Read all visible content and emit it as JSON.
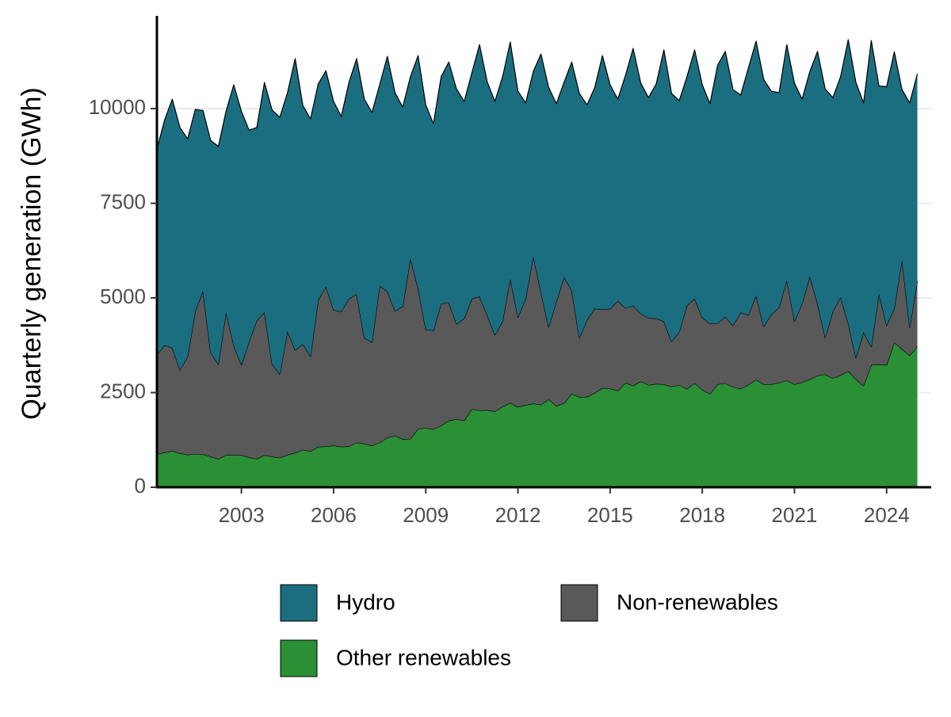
{
  "chart_data": {
    "type": "stacked_area",
    "y_label": "Quarterly generation (GWh)",
    "x": [
      2000.25,
      2000.5,
      2000.75,
      2001,
      2001.25,
      2001.5,
      2001.75,
      2002,
      2002.25,
      2002.5,
      2002.75,
      2003,
      2003.25,
      2003.5,
      2003.75,
      2004,
      2004.25,
      2004.5,
      2004.75,
      2005,
      2005.25,
      2005.5,
      2005.75,
      2006,
      2006.25,
      2006.5,
      2006.75,
      2007,
      2007.25,
      2007.5,
      2007.75,
      2008,
      2008.25,
      2008.5,
      2008.75,
      2009,
      2009.25,
      2009.5,
      2009.75,
      2010,
      2010.25,
      2010.5,
      2010.75,
      2011,
      2011.25,
      2011.5,
      2011.75,
      2012,
      2012.25,
      2012.5,
      2012.75,
      2013,
      2013.25,
      2013.5,
      2013.75,
      2014,
      2014.25,
      2014.5,
      2014.75,
      2015,
      2015.25,
      2015.5,
      2015.75,
      2016,
      2016.25,
      2016.5,
      2016.75,
      2017,
      2017.25,
      2017.5,
      2017.75,
      2018,
      2018.25,
      2018.5,
      2018.75,
      2019,
      2019.25,
      2019.5,
      2019.75,
      2020,
      2020.25,
      2020.5,
      2020.75,
      2021,
      2021.25,
      2021.5,
      2021.75,
      2022,
      2022.25,
      2022.5,
      2022.75,
      2023,
      2023.25,
      2023.5,
      2023.75,
      2024,
      2024.25,
      2024.5,
      2024.75,
      2025
    ],
    "series": [
      {
        "name": "Hydro",
        "color": "#1b6e80",
        "values": [
          5430,
          5950,
          6570,
          6400,
          5750,
          5330,
          4770,
          5610,
          5750,
          5310,
          6880,
          6700,
          5580,
          5100,
          6070,
          6710,
          6790,
          6300,
          7700,
          6300,
          6270,
          5700,
          5700,
          5510,
          5150,
          5710,
          6220,
          6300,
          6070,
          5310,
          6210,
          5770,
          5260,
          4790,
          6150,
          5930,
          5460,
          5990,
          6350,
          6210,
          5730,
          5960,
          6650,
          6170,
          6170,
          6460,
          6250,
          5970,
          5170,
          4880,
          6290,
          6330,
          5230,
          5140,
          6030,
          6460,
          5680,
          5840,
          6700,
          5920,
          5330,
          6150,
          6800,
          6090,
          5820,
          6190,
          7170,
          6550,
          6110,
          6040,
          6570,
          6150,
          5810,
          6810,
          7010,
          6230,
          5740,
          6520,
          6720,
          6520,
          5890,
          5670,
          6220,
          6290,
          5390,
          5410,
          6660,
          6570,
          5640,
          5820,
          7490,
          7270,
          6050,
          8090,
          5490,
          6310,
          6770,
          4490,
          5930,
          5470
        ]
      },
      {
        "name": "Non-renewables",
        "color": "#595959",
        "values": [
          2630,
          2830,
          2720,
          2200,
          2590,
          3770,
          4310,
          2740,
          2500,
          3770,
          2890,
          2380,
          3060,
          3650,
          3770,
          2440,
          2200,
          3260,
          2710,
          2790,
          2510,
          3880,
          4220,
          3580,
          3570,
          3900,
          3920,
          2800,
          2730,
          4140,
          3860,
          3290,
          3510,
          4770,
          3710,
          2600,
          2610,
          3220,
          3120,
          2510,
          2700,
          2910,
          3010,
          2500,
          2020,
          2250,
          3280,
          2370,
          2810,
          3890,
          2970,
          1910,
          2750,
          3330,
          2730,
          1560,
          2030,
          2230,
          2080,
          2100,
          2370,
          1970,
          2110,
          1780,
          1770,
          1730,
          1660,
          1190,
          1400,
          2200,
          2230,
          1900,
          1850,
          1620,
          1750,
          1620,
          2020,
          1840,
          2220,
          1530,
          1850,
          1990,
          2650,
          1660,
          2090,
          2720,
          1900,
          970,
          1770,
          2060,
          1260,
          570,
          1420,
          480,
          1870,
          1040,
          900,
          2360,
          740,
          1730
        ]
      },
      {
        "name": "Other renewables",
        "color": "#2b8f36",
        "values": [
          870,
          920,
          960,
          900,
          860,
          880,
          870,
          810,
          750,
          850,
          860,
          850,
          790,
          750,
          850,
          810,
          780,
          860,
          910,
          990,
          950,
          1070,
          1080,
          1100,
          1070,
          1080,
          1180,
          1150,
          1100,
          1180,
          1310,
          1360,
          1270,
          1280,
          1540,
          1570,
          1530,
          1630,
          1760,
          1800,
          1760,
          2070,
          2030,
          2040,
          2000,
          2130,
          2230,
          2120,
          2170,
          2210,
          2180,
          2320,
          2150,
          2220,
          2470,
          2380,
          2390,
          2490,
          2620,
          2610,
          2550,
          2760,
          2680,
          2800,
          2700,
          2730,
          2720,
          2660,
          2700,
          2600,
          2750,
          2580,
          2470,
          2720,
          2750,
          2650,
          2600,
          2710,
          2840,
          2720,
          2720,
          2760,
          2820,
          2720,
          2770,
          2850,
          2950,
          2980,
          2880,
          2960,
          3070,
          2850,
          2680,
          3230,
          3240,
          3230,
          3830,
          3650,
          3480,
          3720
        ]
      }
    ],
    "xlim": [
      2000.25,
      2025.45
    ],
    "xticks": [
      2003,
      2006,
      2009,
      2012,
      2015,
      2018,
      2021,
      2024
    ],
    "ylim": [
      0,
      12450
    ],
    "yticks": [
      0,
      2500,
      5000,
      7500,
      10000
    ],
    "grid": true,
    "legend": "bottom"
  }
}
